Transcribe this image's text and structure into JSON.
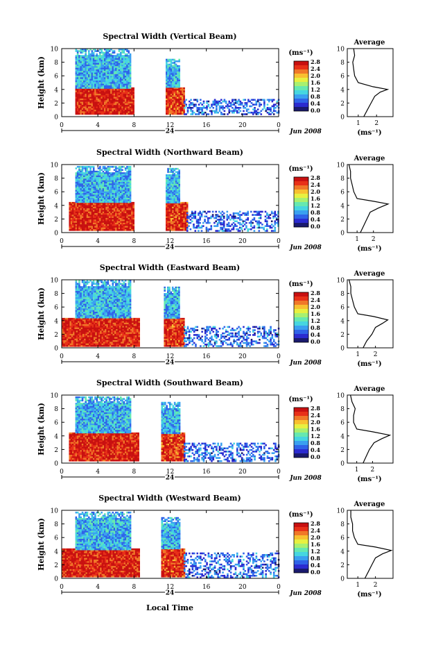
{
  "figure": {
    "x_label": "Local Time",
    "date_label": "Jun 2008",
    "day_label": "24",
    "average_title": "Average",
    "colorbar_unit": "(ms⁻¹)",
    "avg_unit": "(ms⁻¹)",
    "colorbar_ticks": [
      "0.0",
      "0.4",
      "0.8",
      "1.2",
      "1.6",
      "2.0",
      "2.4",
      "2.8"
    ],
    "colormap": [
      "#1a1a6e",
      "#2b2bd0",
      "#2f63e8",
      "#3aa0f0",
      "#46d6e0",
      "#66e8b0",
      "#a8f070",
      "#e8f040",
      "#f8c030",
      "#f07828",
      "#e83018",
      "#c81010"
    ]
  },
  "chart_data": [
    {
      "type": "heatmap",
      "title": "Spectral Width (Vertical Beam)",
      "ylabel": "Height (km)",
      "xlabel": "Local Time",
      "x_ticks": [
        "0",
        "4",
        "8",
        "12",
        "16",
        "20",
        "0"
      ],
      "y_ticks": [
        "0",
        "2",
        "4",
        "6",
        "8",
        "10"
      ],
      "xlim": [
        0,
        24
      ],
      "ylim": [
        0,
        10
      ],
      "colorbar_range": [
        0,
        2.8
      ],
      "regions": [
        {
          "t": [
            1.5,
            8.0
          ],
          "h": [
            0.5,
            4.3
          ],
          "value": 2.6
        },
        {
          "t": [
            1.5,
            7.5
          ],
          "h": [
            4.3,
            10.0
          ],
          "value": 0.9
        },
        {
          "t": [
            11.5,
            13.5
          ],
          "h": [
            0.5,
            4.3
          ],
          "value": 2.5
        },
        {
          "t": [
            11.5,
            13.0
          ],
          "h": [
            4.3,
            8.5
          ],
          "value": 0.9
        },
        {
          "t": [
            13.5,
            24.0
          ],
          "h": [
            0.3,
            2.6
          ],
          "value": 0.6
        }
      ],
      "profile": {
        "height": [
          0,
          1,
          2,
          3,
          3.6,
          4.0,
          4.4,
          5,
          6,
          7,
          8,
          9,
          10
        ],
        "width": [
          1.3,
          1.5,
          1.7,
          1.9,
          2.2,
          2.6,
          1.8,
          1.0,
          0.8,
          0.75,
          0.7,
          0.8,
          0.75
        ],
        "x_ticks": [
          "1",
          "2"
        ],
        "xlim": [
          0.4,
          2.9
        ]
      }
    },
    {
      "type": "heatmap",
      "title": "Spectral Width (Northward Beam)",
      "ylabel": "Height (km)",
      "xlabel": "Local Time",
      "x_ticks": [
        "0",
        "4",
        "8",
        "12",
        "16",
        "20",
        "0"
      ],
      "y_ticks": [
        "0",
        "2",
        "4",
        "6",
        "8",
        "10"
      ],
      "xlim": [
        0,
        24
      ],
      "ylim": [
        0,
        10
      ],
      "colorbar_range": [
        0,
        2.8
      ],
      "regions": [
        {
          "t": [
            0.8,
            8.0
          ],
          "h": [
            0.3,
            4.5
          ],
          "value": 2.6
        },
        {
          "t": [
            1.5,
            7.5
          ],
          "h": [
            4.5,
            9.8
          ],
          "value": 0.9
        },
        {
          "t": [
            11.5,
            13.8
          ],
          "h": [
            0.3,
            4.5
          ],
          "value": 2.5
        },
        {
          "t": [
            11.5,
            13.0
          ],
          "h": [
            4.5,
            9.5
          ],
          "value": 0.9
        },
        {
          "t": [
            13.8,
            24.0
          ],
          "h": [
            0.2,
            3.2
          ],
          "value": 0.6
        }
      ],
      "profile": {
        "height": [
          0,
          1,
          2,
          3,
          3.6,
          4.2,
          4.6,
          5,
          6,
          7,
          8,
          9,
          10
        ],
        "width": [
          1.2,
          1.4,
          1.6,
          1.8,
          2.3,
          2.9,
          2.0,
          1.0,
          0.8,
          0.7,
          0.6,
          0.6,
          0.5
        ],
        "x_ticks": [
          "1",
          "2"
        ],
        "xlim": [
          0.4,
          3.2
        ]
      }
    },
    {
      "type": "heatmap",
      "title": "Spectral Width (Eastward Beam)",
      "ylabel": "Height (km)",
      "xlabel": "Local Time",
      "x_ticks": [
        "0",
        "4",
        "8",
        "12",
        "16",
        "20",
        "0"
      ],
      "y_ticks": [
        "0",
        "2",
        "4",
        "6",
        "8",
        "10"
      ],
      "xlim": [
        0,
        24
      ],
      "ylim": [
        0,
        10
      ],
      "colorbar_range": [
        0,
        2.8
      ],
      "regions": [
        {
          "t": [
            0.0,
            8.5
          ],
          "h": [
            0.2,
            4.4
          ],
          "value": 2.6
        },
        {
          "t": [
            1.5,
            7.5
          ],
          "h": [
            4.4,
            10.0
          ],
          "value": 0.9
        },
        {
          "t": [
            11.3,
            13.5
          ],
          "h": [
            0.2,
            4.4
          ],
          "value": 2.5
        },
        {
          "t": [
            11.3,
            13.0
          ],
          "h": [
            4.4,
            9.0
          ],
          "value": 0.9
        },
        {
          "t": [
            13.5,
            24.0
          ],
          "h": [
            0.2,
            3.2
          ],
          "value": 0.6
        }
      ],
      "profile": {
        "height": [
          0,
          1,
          2,
          3,
          3.6,
          4.1,
          4.6,
          5,
          6,
          7,
          8,
          9,
          10
        ],
        "width": [
          1.3,
          1.5,
          1.8,
          2.0,
          2.4,
          2.7,
          1.9,
          1.0,
          0.8,
          0.7,
          0.6,
          0.6,
          0.5
        ],
        "x_ticks": [
          "1",
          "2"
        ],
        "xlim": [
          0.4,
          3.0
        ]
      }
    },
    {
      "type": "heatmap",
      "title": "Spectral Width (Southward Beam)",
      "ylabel": "Height (km)",
      "xlabel": "Local Time",
      "x_ticks": [
        "0",
        "4",
        "8",
        "12",
        "16",
        "20",
        "0"
      ],
      "y_ticks": [
        "0",
        "2",
        "4",
        "6",
        "8",
        "10"
      ],
      "xlim": [
        0,
        24
      ],
      "ylim": [
        0,
        10
      ],
      "colorbar_range": [
        0,
        2.8
      ],
      "regions": [
        {
          "t": [
            0.8,
            8.5
          ],
          "h": [
            0.3,
            4.5
          ],
          "value": 2.6
        },
        {
          "t": [
            1.5,
            7.5
          ],
          "h": [
            4.5,
            9.8
          ],
          "value": 0.9
        },
        {
          "t": [
            11.0,
            13.5
          ],
          "h": [
            0.3,
            4.5
          ],
          "value": 2.5
        },
        {
          "t": [
            11.0,
            13.0
          ],
          "h": [
            4.5,
            9.0
          ],
          "value": 0.9
        },
        {
          "t": [
            13.5,
            24.0
          ],
          "h": [
            0.2,
            3.0
          ],
          "value": 0.6
        }
      ],
      "profile": {
        "height": [
          0,
          1,
          2,
          3,
          3.6,
          4.1,
          4.6,
          5,
          6,
          7,
          8,
          9,
          10
        ],
        "width": [
          1.4,
          1.6,
          1.8,
          2.1,
          2.6,
          3.1,
          2.0,
          1.0,
          0.8,
          0.8,
          0.9,
          0.7,
          0.6
        ],
        "x_ticks": [
          "1",
          "2"
        ],
        "xlim": [
          0.4,
          3.3
        ]
      }
    },
    {
      "type": "heatmap",
      "title": "Spectral Width (Westward Beam)",
      "ylabel": "Height (km)",
      "xlabel": "Local Time",
      "x_ticks": [
        "0",
        "4",
        "8",
        "12",
        "16",
        "20",
        "0"
      ],
      "y_ticks": [
        "0",
        "2",
        "4",
        "6",
        "8",
        "10"
      ],
      "xlim": [
        0,
        24
      ],
      "ylim": [
        0,
        10
      ],
      "colorbar_range": [
        0,
        2.8
      ],
      "regions": [
        {
          "t": [
            0.0,
            8.5
          ],
          "h": [
            0.2,
            4.4
          ],
          "value": 2.6
        },
        {
          "t": [
            1.5,
            7.5
          ],
          "h": [
            4.4,
            9.8
          ],
          "value": 0.9
        },
        {
          "t": [
            11.0,
            13.5
          ],
          "h": [
            0.2,
            4.4
          ],
          "value": 2.5
        },
        {
          "t": [
            11.0,
            13.0
          ],
          "h": [
            4.4,
            9.0
          ],
          "value": 0.9
        },
        {
          "t": [
            13.5,
            24.0
          ],
          "h": [
            0.2,
            3.8
          ],
          "value": 0.6
        }
      ],
      "profile": {
        "height": [
          0,
          1,
          2,
          3,
          3.6,
          4.1,
          4.6,
          5,
          6,
          7,
          8,
          9,
          10
        ],
        "width": [
          1.4,
          1.6,
          1.8,
          2.0,
          2.4,
          2.9,
          2.0,
          1.0,
          0.8,
          0.7,
          0.7,
          0.6,
          0.6
        ],
        "x_ticks": [
          "1",
          "2"
        ],
        "xlim": [
          0.4,
          3.0
        ]
      }
    }
  ]
}
